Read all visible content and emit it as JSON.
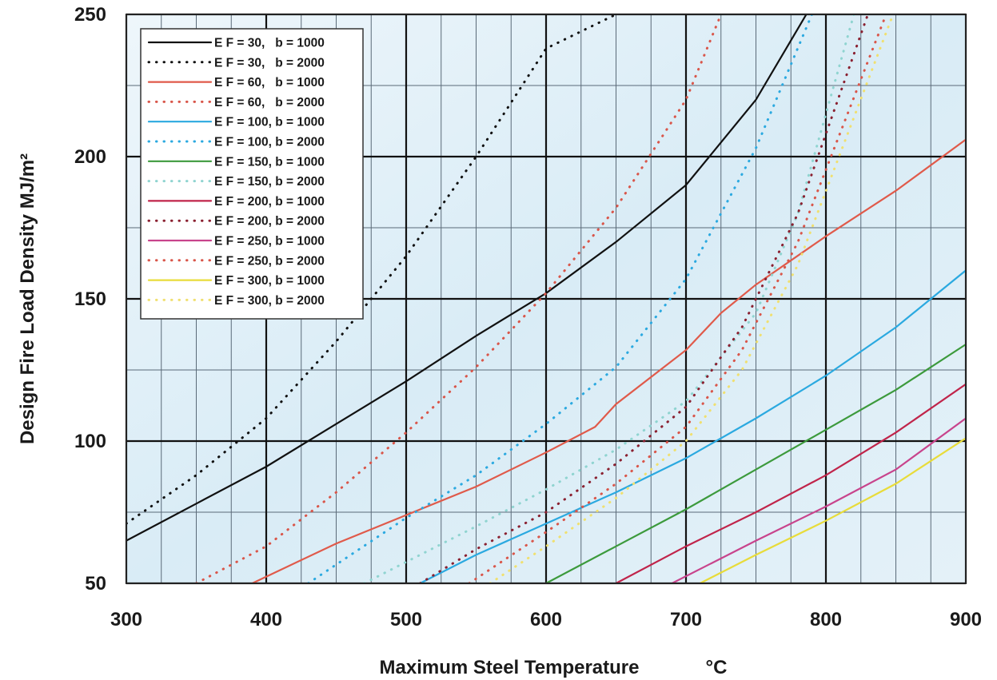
{
  "chart_data": {
    "type": "line",
    "title": "",
    "xlabel": "Maximum Steel Temperature",
    "xlabel_unit": "°C",
    "ylabel": "Design Fire Load Density MJ/m²",
    "xlim": [
      300,
      900
    ],
    "ylim": [
      50,
      250
    ],
    "x_ticks": [
      "300",
      "400",
      "500",
      "600",
      "700",
      "800",
      "900"
    ],
    "y_ticks": [
      "50",
      "100",
      "150",
      "200",
      "250"
    ],
    "grid": true,
    "legend_position": "top-left",
    "series": [
      {
        "name": "E F = 30,   b = 1000",
        "color": "#111111",
        "style": "solid",
        "x": [
          300,
          350,
          400,
          450,
          500,
          550,
          600,
          650,
          700,
          725,
          750,
          780,
          786
        ],
        "y": [
          65,
          78,
          91,
          106,
          121,
          137,
          152,
          170,
          190,
          205,
          220,
          245,
          250
        ]
      },
      {
        "name": "E F = 30,   b = 2000",
        "color": "#111111",
        "style": "dotted",
        "x": [
          300,
          350,
          400,
          450,
          500,
          550,
          600,
          650
        ],
        "y": [
          71,
          88,
          108,
          135,
          165,
          200,
          238,
          250
        ]
      },
      {
        "name": "E F = 60,   b = 1000",
        "color": "#e05a4a",
        "style": "solid",
        "x": [
          390,
          450,
          500,
          550,
          600,
          635,
          650,
          700,
          725,
          750,
          800,
          850,
          900
        ],
        "y": [
          50,
          64,
          74,
          84,
          96,
          105,
          113,
          132,
          145,
          155,
          172,
          188,
          206
        ]
      },
      {
        "name": "E F = 60,   b = 2000",
        "color": "#d9564a",
        "style": "dotted",
        "x": [
          350,
          400,
          450,
          500,
          550,
          600,
          650,
          700,
          725
        ],
        "y": [
          50,
          63,
          82,
          103,
          126,
          152,
          182,
          220,
          250
        ]
      },
      {
        "name": "E F = 100, b = 1000",
        "color": "#2ba9e0",
        "style": "solid",
        "x": [
          510,
          550,
          600,
          650,
          700,
          750,
          800,
          850,
          900
        ],
        "y": [
          50,
          60,
          71,
          82,
          94,
          108,
          123,
          140,
          160
        ]
      },
      {
        "name": "E F = 100, b = 2000",
        "color": "#2ba9e0",
        "style": "dotted",
        "x": [
          430,
          500,
          550,
          600,
          650,
          700,
          750,
          790
        ],
        "y": [
          50,
          73,
          88,
          106,
          126,
          157,
          203,
          250
        ]
      },
      {
        "name": "E F = 150, b = 1000",
        "color": "#3c9a3c",
        "style": "solid",
        "x": [
          600,
          650,
          700,
          750,
          800,
          850,
          900
        ],
        "y": [
          50,
          63,
          76,
          90,
          104,
          118,
          134
        ]
      },
      {
        "name": "E F = 150, b = 2000",
        "color": "#8fd4d0",
        "style": "dotted",
        "x": [
          470,
          550,
          600,
          650,
          700,
          750,
          780,
          820
        ],
        "y": [
          50,
          70,
          83,
          97,
          114,
          145,
          180,
          250
        ]
      },
      {
        "name": "E F = 200, b = 1000",
        "color": "#c0244a",
        "style": "solid",
        "x": [
          650,
          700,
          750,
          800,
          850,
          900
        ],
        "y": [
          50,
          63,
          75,
          88,
          103,
          120
        ]
      },
      {
        "name": "E F = 200, b = 2000",
        "color": "#8a2030",
        "style": "dotted",
        "x": [
          510,
          550,
          600,
          650,
          700,
          740,
          780,
          830
        ],
        "y": [
          50,
          62,
          75,
          92,
          112,
          140,
          180,
          250
        ]
      },
      {
        "name": "E F = 250, b = 1000",
        "color": "#c8448c",
        "style": "solid",
        "x": [
          690,
          750,
          800,
          850,
          900
        ],
        "y": [
          50,
          65,
          77,
          90,
          108
        ]
      },
      {
        "name": "E F = 250, b = 2000",
        "color": "#d9564a",
        "style": "dotted",
        "x": [
          545,
          600,
          650,
          700,
          740,
          780,
          843
        ],
        "y": [
          50,
          68,
          85,
          105,
          132,
          170,
          250
        ]
      },
      {
        "name": "E F = 300, b = 1000",
        "color": "#e8dc3a",
        "style": "solid",
        "x": [
          710,
          750,
          800,
          850,
          900
        ],
        "y": [
          50,
          60,
          72,
          85,
          101
        ]
      },
      {
        "name": "E F = 300, b = 2000",
        "color": "#f0e070",
        "style": "dotted",
        "x": [
          560,
          600,
          650,
          700,
          740,
          780,
          848
        ],
        "y": [
          50,
          63,
          80,
          100,
          125,
          162,
          250
        ]
      }
    ]
  }
}
